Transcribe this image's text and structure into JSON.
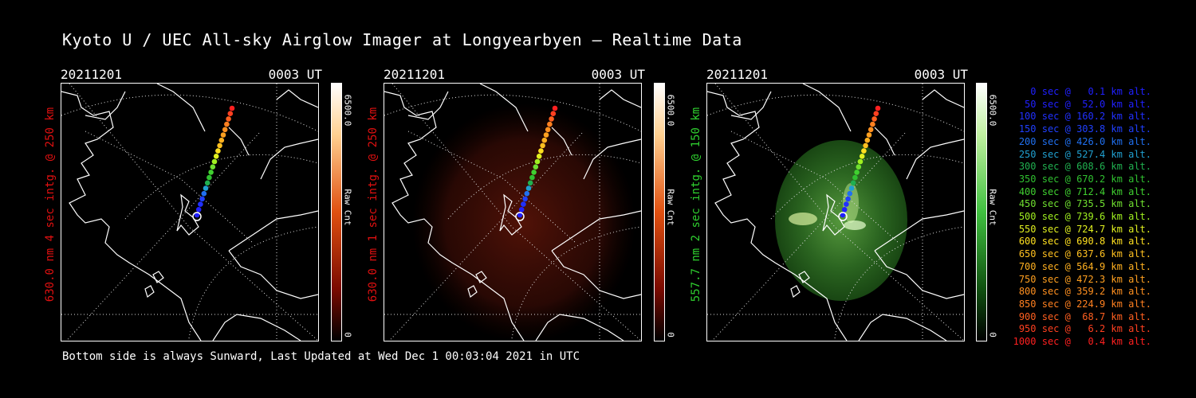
{
  "title": "Kyoto U / UEC All-sky Airglow Imager at Longyearbyen — Realtime Data",
  "footer": "Bottom side is always Sunward, Last Updated at Wed Dec  1 00:03:04 2021 in UTC",
  "panels": [
    {
      "date": "20211201",
      "ut": "0003 UT",
      "ylabel": "630.0 nm 4 sec intg. @ 250 km",
      "ylabel_color": "#e01010",
      "cbar_max": "6500.0",
      "cbar_unit": "Raw Cnt",
      "cbar_min": "0",
      "cbar_color": "#d21a00",
      "glow": "none"
    },
    {
      "date": "20211201",
      "ut": "0003 UT",
      "ylabel": "630.0 nm 1 sec intg. @ 250 km",
      "ylabel_color": "#e01010",
      "cbar_max": "6500.0",
      "cbar_unit": "Raw Cnt",
      "cbar_min": "0",
      "cbar_color": "#d21a00",
      "glow": "red"
    },
    {
      "date": "20211201",
      "ut": "0003 UT",
      "ylabel": "557.7 nm 2 sec intg. @ 150 km",
      "ylabel_color": "#2fd02f",
      "cbar_max": "6500.0",
      "cbar_unit": "Raw Cnt",
      "cbar_min": "0",
      "cbar_color": "#2aa02a",
      "glow": "green"
    }
  ],
  "rocket_times": [
    {
      "text": "   0 sec @   0.1 km alt.",
      "color": "#2020ff"
    },
    {
      "text": "  50 sec @  52.0 km alt.",
      "color": "#2020ff"
    },
    {
      "text": " 100 sec @ 160.2 km alt.",
      "color": "#2030ff"
    },
    {
      "text": " 150 sec @ 303.8 km alt.",
      "color": "#2040ff"
    },
    {
      "text": " 200 sec @ 426.0 km alt.",
      "color": "#2070f0"
    },
    {
      "text": " 250 sec @ 527.4 km alt.",
      "color": "#20a0d0"
    },
    {
      "text": " 300 sec @ 608.6 km alt.",
      "color": "#20b050"
    },
    {
      "text": " 350 sec @ 670.2 km alt.",
      "color": "#30c030"
    },
    {
      "text": " 400 sec @ 712.4 km alt.",
      "color": "#40d030"
    },
    {
      "text": " 450 sec @ 735.5 km alt.",
      "color": "#70e030"
    },
    {
      "text": " 500 sec @ 739.6 km alt.",
      "color": "#a0f020"
    },
    {
      "text": " 550 sec @ 724.7 km alt.",
      "color": "#e0f020"
    },
    {
      "text": " 600 sec @ 690.8 km alt.",
      "color": "#ffe020"
    },
    {
      "text": " 650 sec @ 637.6 km alt.",
      "color": "#ffc020"
    },
    {
      "text": " 700 sec @ 564.9 km alt.",
      "color": "#ffb020"
    },
    {
      "text": " 750 sec @ 472.3 km alt.",
      "color": "#ffa020"
    },
    {
      "text": " 800 sec @ 359.2 km alt.",
      "color": "#ff9020"
    },
    {
      "text": " 850 sec @ 224.9 km alt.",
      "color": "#ff8020"
    },
    {
      "text": " 900 sec @  68.7 km alt.",
      "color": "#ff6020"
    },
    {
      "text": " 950 sec @   6.2 km alt.",
      "color": "#ff4020"
    },
    {
      "text": "1000 sec @   0.4 km alt.",
      "color": "#ff2020"
    }
  ]
}
